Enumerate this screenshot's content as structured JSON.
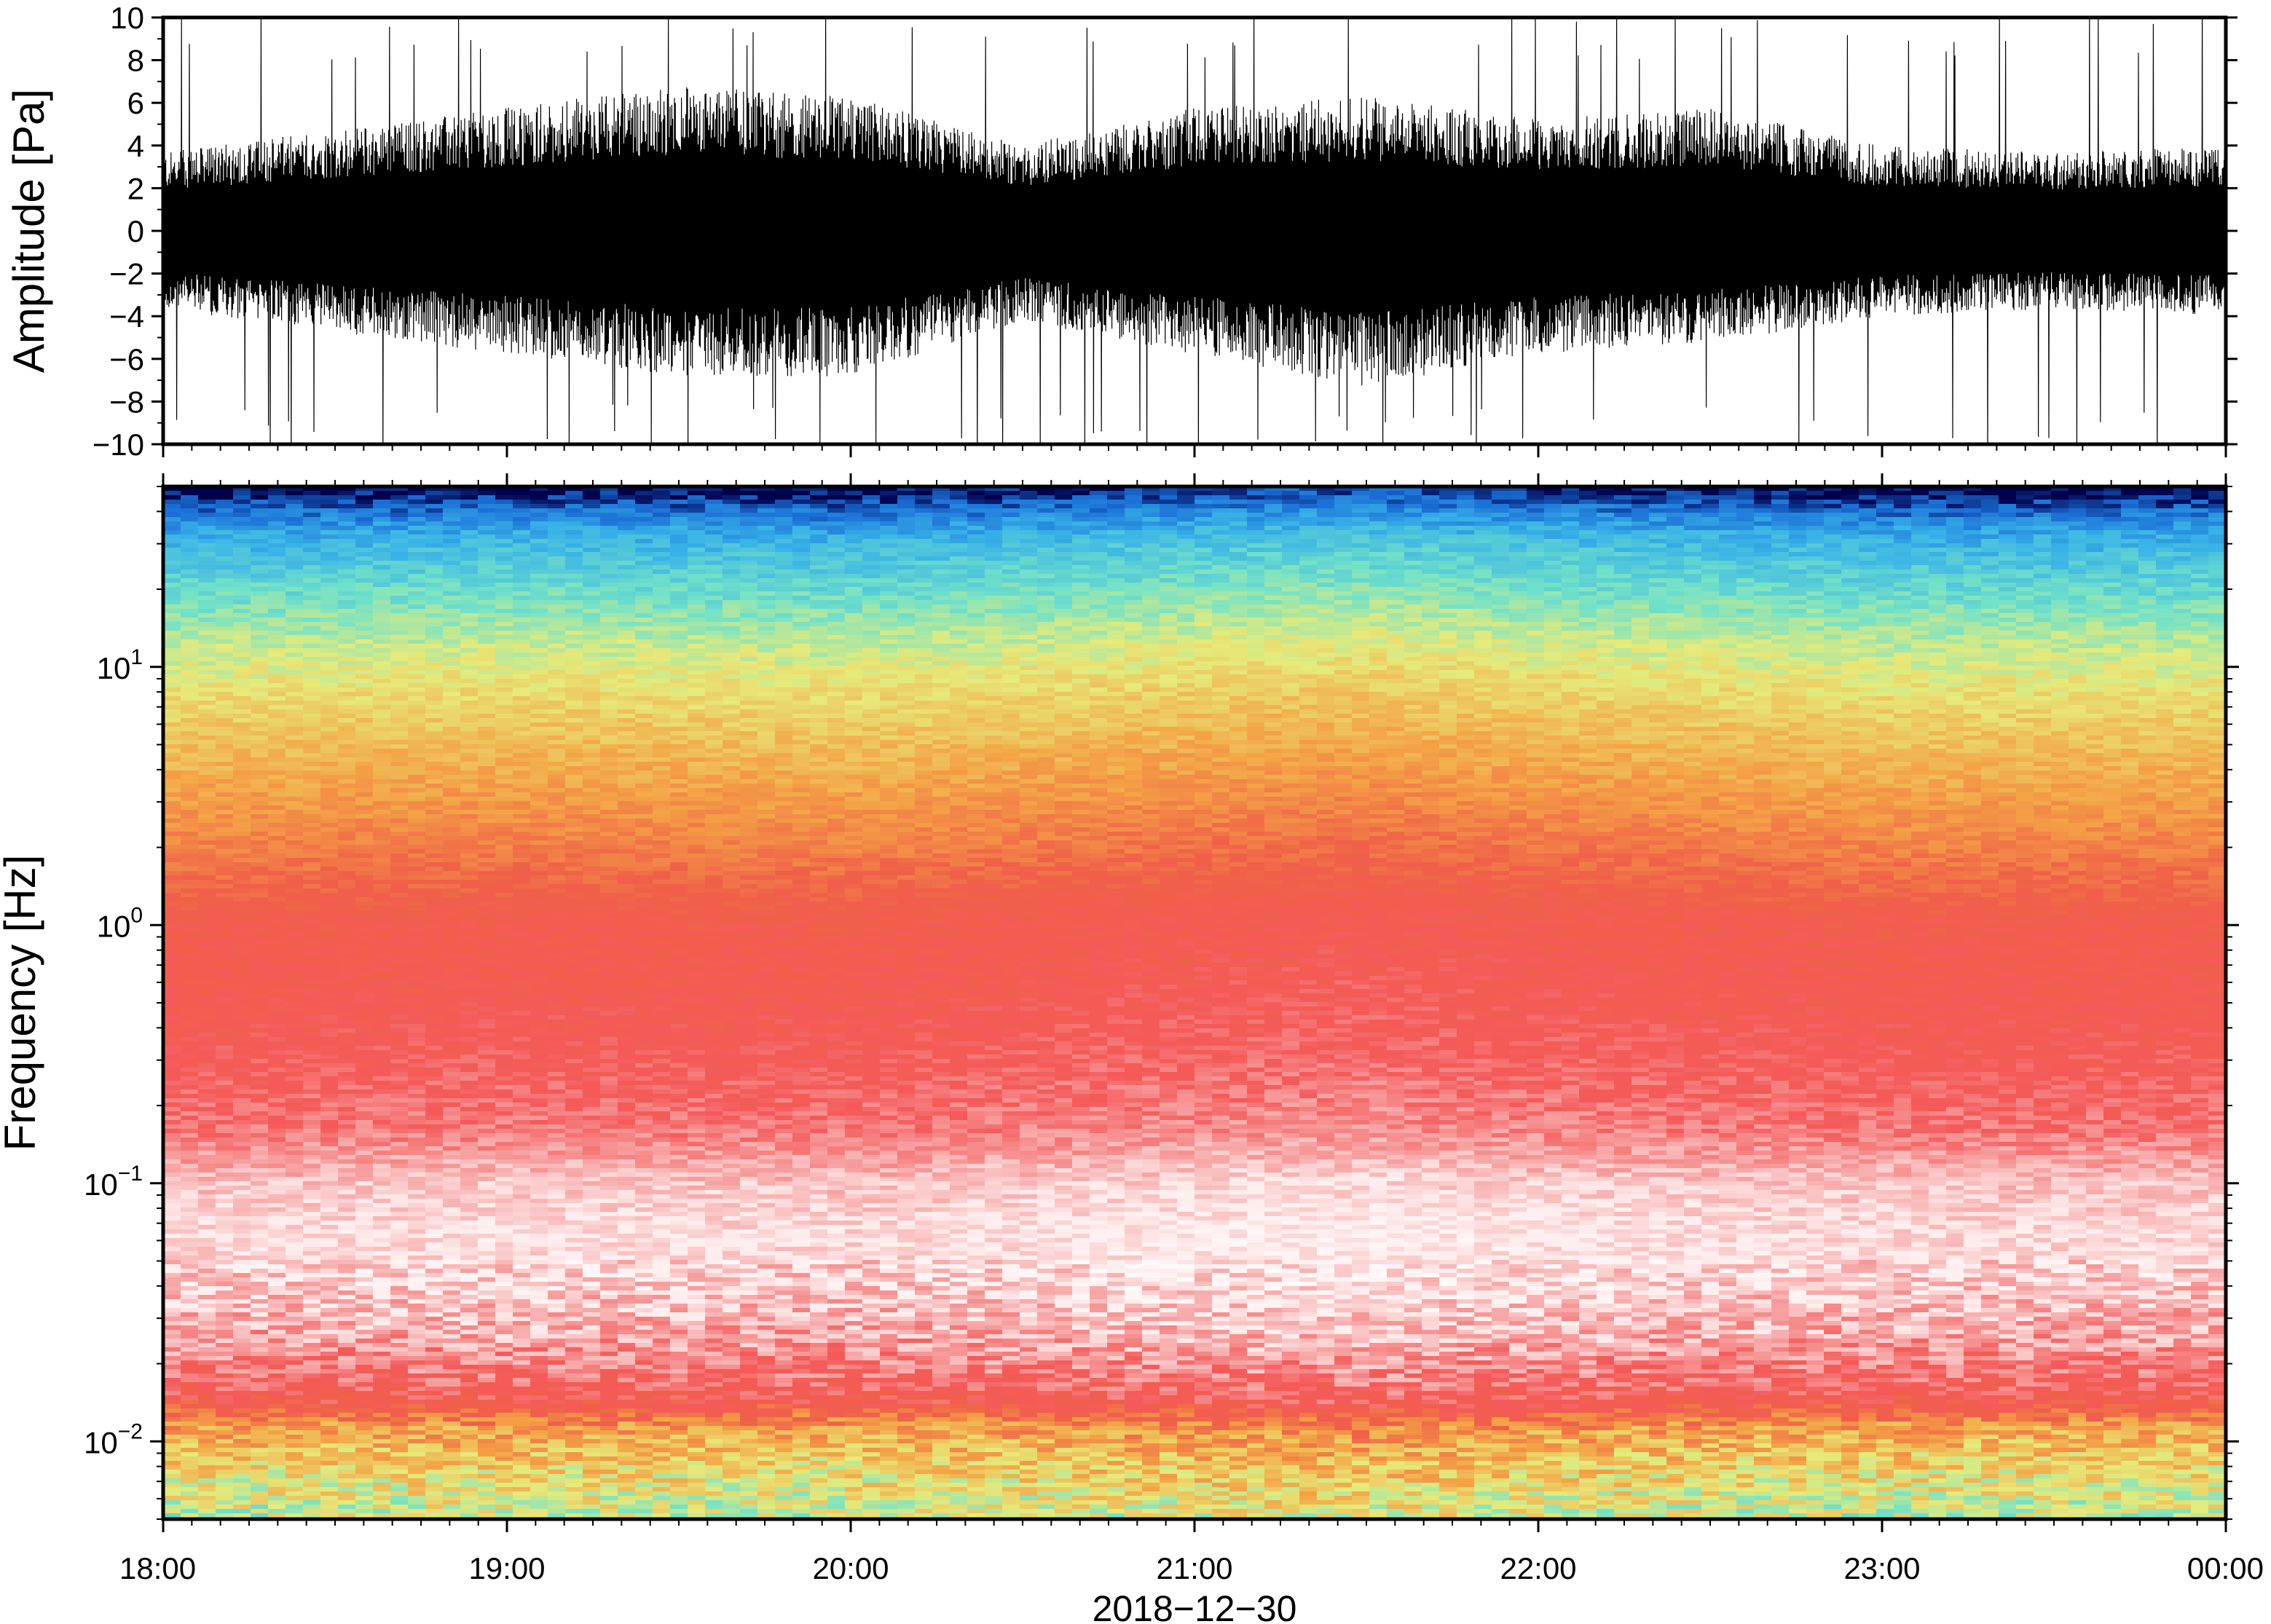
{
  "chart_data": [
    {
      "type": "line",
      "panel": "waveform",
      "ylabel": "Amplitude [Pa]",
      "ylim": [
        -10,
        10
      ],
      "y_ticks": [
        -10,
        -8,
        -6,
        -4,
        -2,
        0,
        2,
        4,
        6,
        8,
        10
      ],
      "y_tick_labels": [
        "−10",
        "−8",
        "−6",
        "−4",
        "−2",
        "0",
        "2",
        "4",
        "6",
        "8",
        "10"
      ],
      "xlim_hours": [
        18,
        24
      ],
      "series": [
        {
          "color": "#000000",
          "envelope_hours": [
            18.0,
            18.5,
            19.0,
            19.5,
            20.0,
            20.5,
            21.0,
            21.5,
            22.0,
            22.5,
            23.0,
            23.5,
            24.0
          ],
          "envelope_upper_pa": [
            3.5,
            4.5,
            5.5,
            6.5,
            6.0,
            3.8,
            5.5,
            6.0,
            5.0,
            5.5,
            3.8,
            3.5,
            3.8
          ],
          "envelope_lower_pa": [
            -3.5,
            -4.5,
            -5.5,
            -6.5,
            -6.5,
            -4.0,
            -5.5,
            -7.0,
            -5.5,
            -5.0,
            -3.8,
            -3.5,
            -3.8
          ],
          "peak_abs_pa": 10
        }
      ]
    },
    {
      "type": "heatmap",
      "panel": "spectrogram",
      "ylabel": "Frequency [Hz]",
      "xlabel": "2018−12−30",
      "y_scale": "log",
      "ylim": [
        0.005,
        50
      ],
      "y_ticks": [
        0.01,
        0.1,
        1,
        10
      ],
      "y_tick_labels": [
        {
          "base": "10",
          "exp": "−2"
        },
        {
          "base": "10",
          "exp": "−1"
        },
        {
          "base": "10",
          "exp": "0"
        },
        {
          "base": "10",
          "exp": "1"
        }
      ],
      "x_ticks_hours": [
        18,
        19,
        20,
        21,
        22,
        23,
        24
      ],
      "x_tick_labels": [
        "18:00",
        "19:00",
        "20:00",
        "21:00",
        "22:00",
        "23:00",
        "00:00"
      ],
      "colormap": [
        [
          0.0,
          "#00004c"
        ],
        [
          0.06,
          "#1a6fd6"
        ],
        [
          0.14,
          "#38b2e8"
        ],
        [
          0.24,
          "#72e2c8"
        ],
        [
          0.34,
          "#e6eb7a"
        ],
        [
          0.46,
          "#f4a446"
        ],
        [
          0.58,
          "#f06048"
        ],
        [
          0.7,
          "#f55a5a"
        ],
        [
          0.82,
          "#f8b2b2"
        ],
        [
          0.9,
          "#ffeaea"
        ],
        [
          1.0,
          "#ffffff"
        ]
      ],
      "profile_log10_freq": [
        -2.3,
        -2.1,
        -1.95,
        -1.85,
        -1.75,
        -1.6,
        -1.4,
        -1.2,
        -1.0,
        -0.8,
        -0.5,
        -0.2,
        0.0,
        0.3,
        0.6,
        0.9,
        1.1,
        1.3,
        1.5,
        1.62,
        1.68
      ],
      "profile_level": [
        0.3,
        0.38,
        0.46,
        0.64,
        0.72,
        0.8,
        0.86,
        0.88,
        0.84,
        0.74,
        0.68,
        0.64,
        0.62,
        0.52,
        0.44,
        0.36,
        0.3,
        0.22,
        0.14,
        0.05,
        0.0
      ],
      "hour_brightness_offset": [
        [
          18.0,
          0.0
        ],
        [
          19.0,
          0.01
        ],
        [
          20.0,
          0.0
        ],
        [
          21.0,
          0.03
        ],
        [
          21.5,
          0.04
        ],
        [
          22.0,
          0.02
        ],
        [
          23.0,
          0.0
        ],
        [
          24.0,
          0.0
        ]
      ]
    }
  ]
}
